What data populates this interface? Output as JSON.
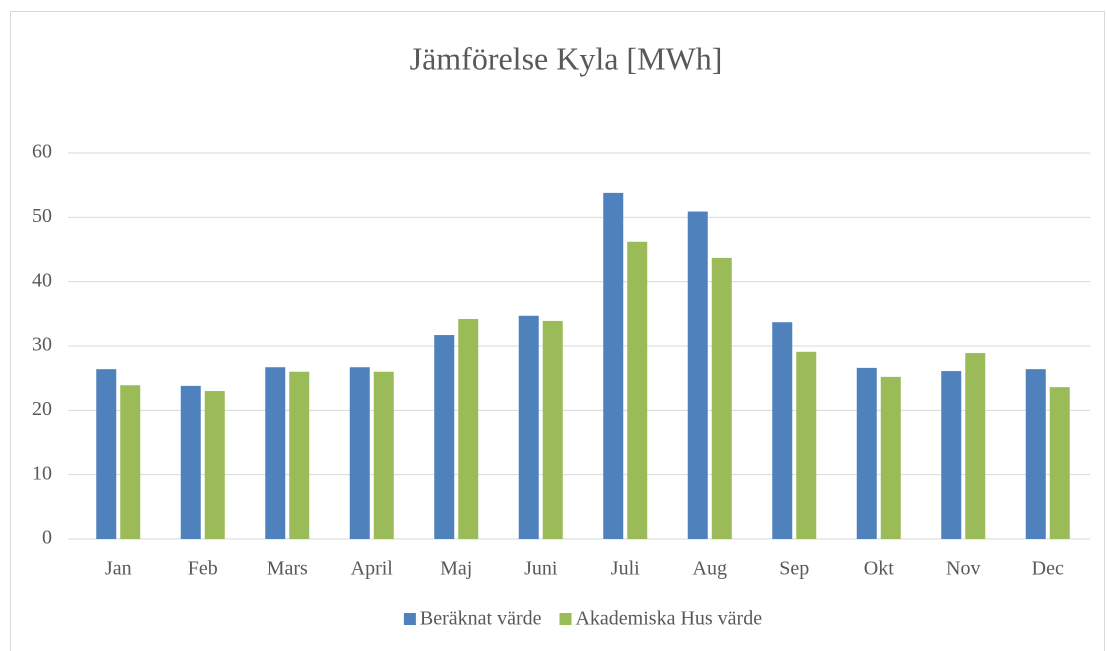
{
  "chart_data": {
    "type": "bar",
    "title": "Jämförelse Kyla [MWh]",
    "categories": [
      "Jan",
      "Feb",
      "Mars",
      "April",
      "Maj",
      "Juni",
      "Juli",
      "Aug",
      "Sep",
      "Okt",
      "Nov",
      "Dec"
    ],
    "series": [
      {
        "name": "Beräknat värde",
        "color": "#4f81bd",
        "values": [
          26.4,
          23.8,
          26.7,
          26.7,
          31.7,
          34.7,
          53.8,
          50.9,
          33.7,
          26.6,
          26.1,
          26.4
        ]
      },
      {
        "name": "Akademiska Hus värde",
        "color": "#9bbb59",
        "values": [
          23.9,
          23.0,
          26.0,
          26.0,
          34.2,
          33.9,
          46.2,
          43.7,
          29.1,
          25.2,
          28.9,
          23.6
        ]
      }
    ],
    "ylim": [
      0,
      60
    ],
    "yticks": [
      0,
      10,
      20,
      30,
      40,
      50,
      60
    ],
    "grid": true,
    "legend": "bottom"
  }
}
